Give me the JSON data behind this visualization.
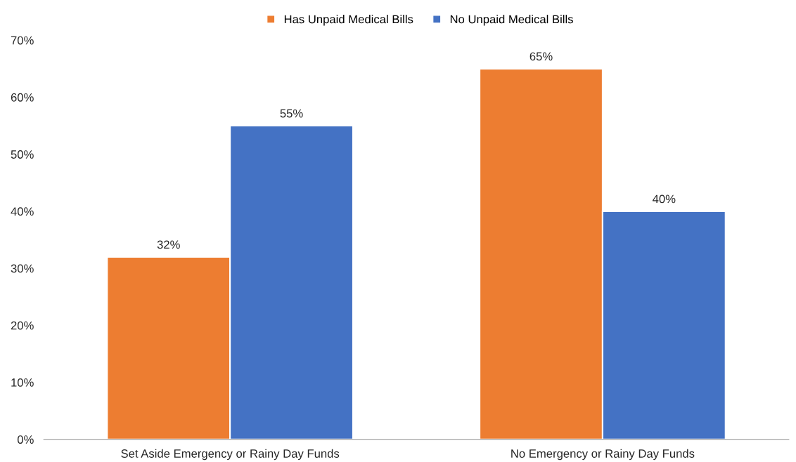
{
  "chart_data": {
    "type": "bar",
    "categories": [
      "Set Aside Emergency or Rainy Day Funds",
      "No Emergency or Rainy Day Funds"
    ],
    "series": [
      {
        "name": "Has Unpaid Medical Bills",
        "color": "#ed7d31",
        "values": [
          32,
          65
        ],
        "value_labels": [
          "32%",
          "65%"
        ]
      },
      {
        "name": "No Unpaid Medical Bills",
        "color": "#4472c4",
        "values": [
          55,
          40
        ],
        "value_labels": [
          "55%",
          "40%"
        ]
      }
    ],
    "ylim": [
      0,
      70
    ],
    "yticks": [
      {
        "value": 0,
        "label": "0%"
      },
      {
        "value": 10,
        "label": "10%"
      },
      {
        "value": 20,
        "label": "20%"
      },
      {
        "value": 30,
        "label": "30%"
      },
      {
        "value": 40,
        "label": "40%"
      },
      {
        "value": 50,
        "label": "50%"
      },
      {
        "value": 60,
        "label": "60%"
      },
      {
        "value": 70,
        "label": "70%"
      }
    ],
    "grid": false,
    "legend": "top"
  }
}
